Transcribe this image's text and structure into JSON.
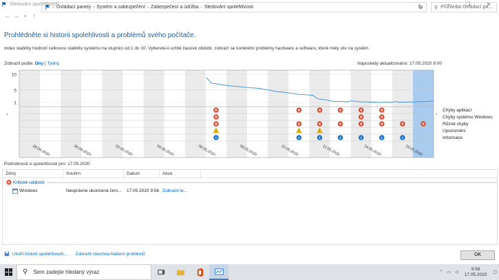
{
  "window": {
    "title": "Sledování spolehlivosti",
    "controls": [
      "—",
      "❐",
      "✕"
    ]
  },
  "address": {
    "crumbs": [
      "Ovládací panely",
      "Systém a zabezpečení",
      "Zabezpečení a údržba",
      "Sledování spolehlivosti"
    ],
    "search_placeholder": "Prohledat Ovládací pa..."
  },
  "main": {
    "heading": "Prohlédněte si historii spolehlivosti a problémů svého počítače.",
    "description": "Index stability hodnotí celkovou stabilitu systému na stupnici od 1 do 10. Vyberete-li určité časové období, zobrazí se konkrétní problémy hardwaru a softwaru, které měly vliv na systém.",
    "view_by_label": "Zobrazit podle:",
    "view_days": "Dny",
    "view_sep": "|",
    "view_weeks": "Týdny",
    "last_updated": "Naposledy aktualizováno: 17.05.2020 8:00"
  },
  "chart_data": {
    "type": "line",
    "y_ticks": [
      "10",
      "5",
      "1"
    ],
    "ylim": [
      1,
      10
    ],
    "date_labels": [
      "28.04.2020",
      "30.04.2020",
      "02.05.2020",
      "04.05.2020",
      "06.05.2020",
      "08.05.2020",
      "10.05.2020",
      "12.05.2020",
      "14.05.2020",
      "16.05.2020"
    ],
    "columns": 20,
    "selected_column": 19,
    "stability_series": {
      "start_column": 9,
      "values": [
        9.0,
        7.2,
        7.0,
        6.7,
        6.5,
        6.3,
        6.2,
        6.0,
        5.9,
        5.7,
        5.6,
        5.5,
        5.2,
        5.0,
        4.6,
        4.4,
        4.3,
        4.1,
        3.9,
        3.6,
        3.5,
        3.4,
        3.3,
        2.2,
        2.0,
        1.8,
        1.4,
        1.3,
        1.3,
        1.2,
        1.5,
        1.4,
        1.2,
        1.2,
        1.1,
        1.1,
        1.0,
        1.2,
        1.0,
        1.3,
        1.1,
        1.1,
        1.2,
        1.1,
        1.3,
        1.2,
        1.4,
        1.4
      ]
    },
    "categories": [
      "Chyby aplikací",
      "Chyby systému Windows",
      "Různé chyby",
      "Upozornění",
      "Informace"
    ],
    "events": [
      {
        "column": 9,
        "rows": [
          0,
          1,
          2,
          3,
          4
        ]
      },
      {
        "column": 13,
        "rows": [
          0,
          2,
          3,
          4
        ]
      },
      {
        "column": 14,
        "rows": [
          0,
          2,
          3,
          4
        ]
      },
      {
        "column": 15,
        "rows": [
          0,
          2,
          4
        ]
      },
      {
        "column": 16,
        "rows": [
          0,
          1,
          2,
          4
        ]
      },
      {
        "column": 17,
        "rows": [
          0,
          1,
          2,
          4
        ]
      },
      {
        "column": 18,
        "rows": [
          2,
          4
        ]
      },
      {
        "column": 19,
        "rows": [
          2
        ]
      }
    ]
  },
  "details": {
    "label": "Podrobnosti o spolehlivosti pro: 17.05.2020",
    "columns": [
      "Zdroj",
      "Souhrn",
      "Datum",
      "Akce"
    ],
    "group": "Kritické události",
    "rows": [
      {
        "source": "Windows",
        "summary": "Nesprávné ukončená činn...",
        "date": "17.05.2020 9:56",
        "action": "Zobrazit te..."
      }
    ]
  },
  "footer": {
    "save_link": "Uložit historii spolehlivosti...",
    "reports_link": "Zobrazit všechna hlášení problémů",
    "ok": "OK"
  },
  "taskbar": {
    "search_placeholder": "Sem zadejte hledaný výraz",
    "time": "9:58",
    "date": "17.05.2020"
  },
  "colors": {
    "accent": "#1a5fb4",
    "line": "#3b8fd8",
    "error": "#e0442a",
    "warning": "#f2c200",
    "info": "#1e78d2",
    "selected": "#a9cbee"
  }
}
